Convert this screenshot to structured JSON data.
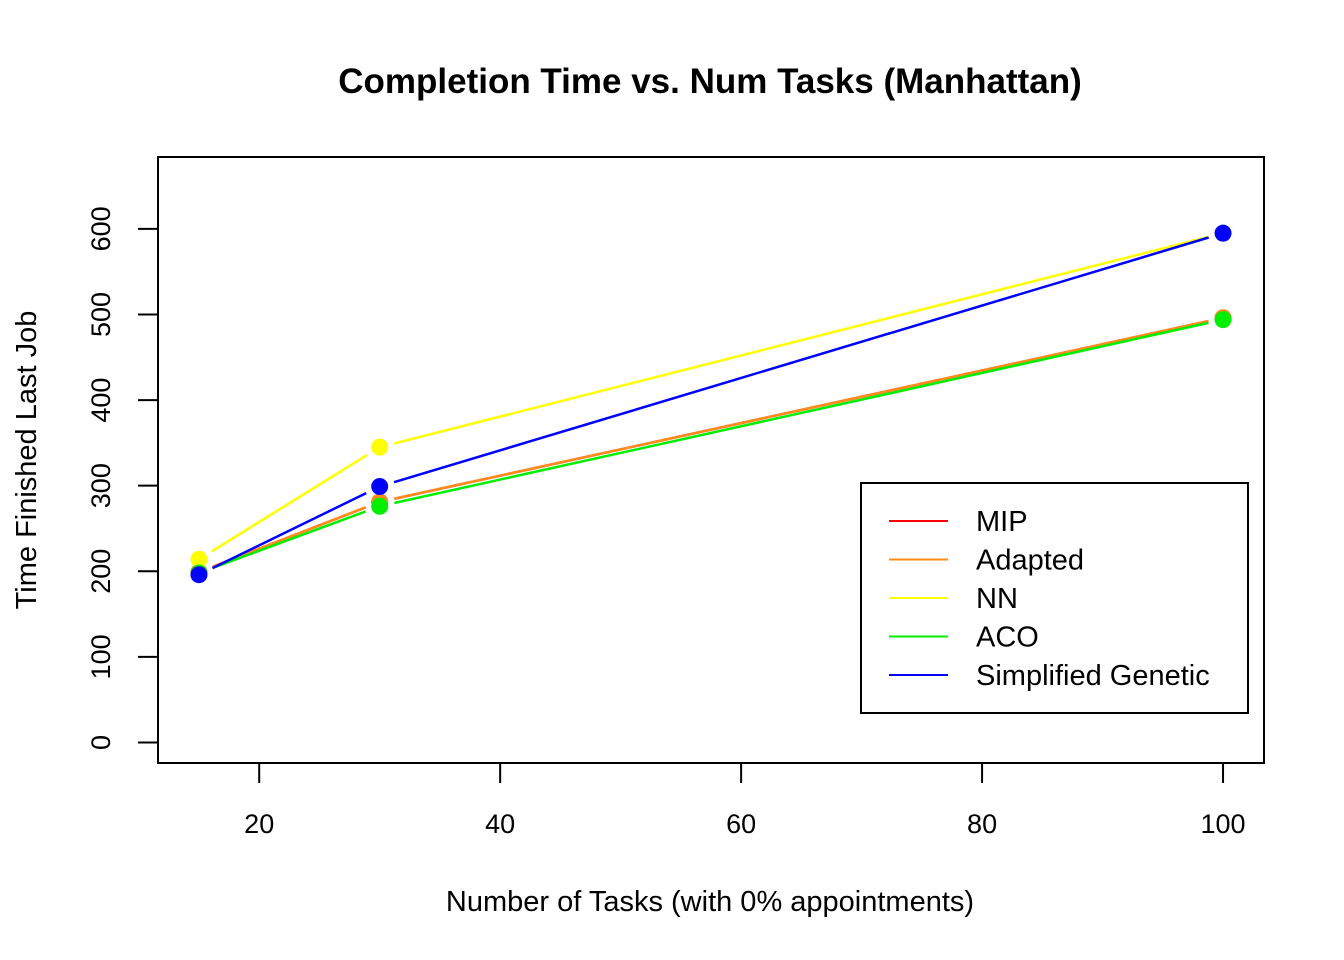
{
  "chart_data": {
    "type": "line",
    "title": "Completion Time vs. Num Tasks (Manhattan)",
    "xlabel": "Number of Tasks (with 0% appointments)",
    "ylabel": "Time Finished Last Job",
    "x": [
      15,
      30,
      100
    ],
    "xlim": [
      11.6,
      103.4
    ],
    "ylim": [
      -24,
      684
    ],
    "xticks": [
      20,
      40,
      60,
      80,
      100
    ],
    "yticks": [
      0,
      100,
      200,
      300,
      400,
      500,
      600
    ],
    "grid": false,
    "legend_position": "bottom-right",
    "series": [
      {
        "name": "MIP",
        "color": "#ff0000",
        "values": [
          199,
          281,
          496
        ]
      },
      {
        "name": "Adapted",
        "color": "#ff8c1a",
        "values": [
          199,
          281,
          496
        ]
      },
      {
        "name": "NN",
        "color": "#ffff00",
        "values": [
          214,
          345,
          595
        ]
      },
      {
        "name": "ACO",
        "color": "#00ee00",
        "values": [
          198,
          276,
          494
        ]
      },
      {
        "name": "Simplified Genetic",
        "color": "#0000ff",
        "values": [
          196,
          299,
          595
        ]
      }
    ]
  }
}
